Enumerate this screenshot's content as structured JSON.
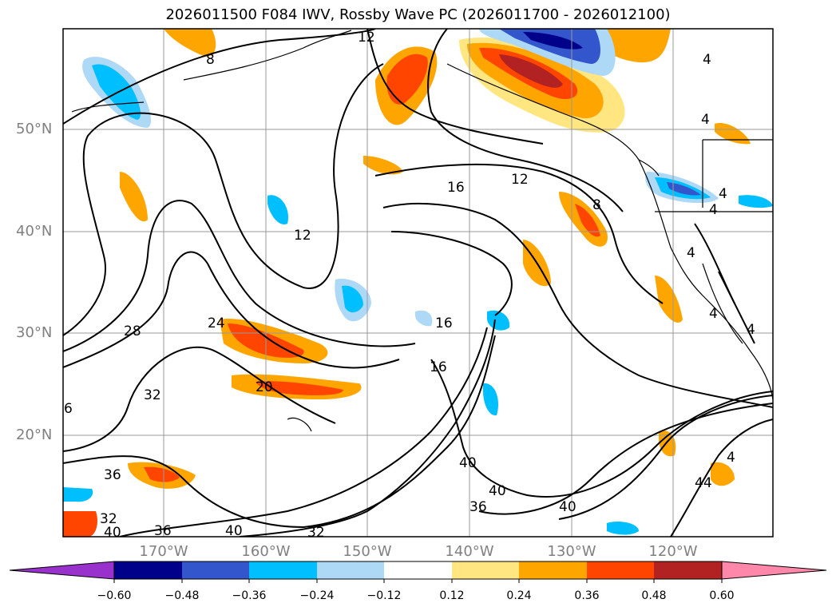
{
  "title": "2026011500 F084 IWV, Rossby Wave PC (2026011700 - 2026012100)",
  "lat_labels": [
    "50°N",
    "40°N",
    "30°N",
    "20°N"
  ],
  "lon_labels": [
    "170°W",
    "160°W",
    "150°W",
    "140°W",
    "130°W",
    "120°W"
  ],
  "colorbar": {
    "ticks": [
      "−0.60",
      "−0.48",
      "−0.36",
      "−0.24",
      "−0.12",
      "0.12",
      "0.24",
      "0.36",
      "0.48",
      "0.60"
    ],
    "colors": [
      "#9932cc",
      "#00008b",
      "#3356cc",
      "#00bfff",
      "#add8f6",
      "#ffffff",
      "#ffe680",
      "#ffa500",
      "#ff4500",
      "#b22222",
      "#ff88aa"
    ]
  },
  "contour_labels": [
    "12",
    "16",
    "12",
    "8",
    "12",
    "28",
    "24",
    "16",
    "16",
    "32",
    "20",
    "6",
    "36",
    "32",
    "40",
    "36",
    "40",
    "40",
    "36",
    "32",
    "40",
    "40",
    "44",
    "4",
    "4",
    "4",
    "4",
    "4",
    "4",
    "4",
    "4",
    "8"
  ],
  "palette": {
    "positive": "#ffa500",
    "strong_positive": "#ff4500",
    "negative": "#00bfff",
    "light_negative": "#add8f6",
    "dark_negative": "#3356cc"
  }
}
